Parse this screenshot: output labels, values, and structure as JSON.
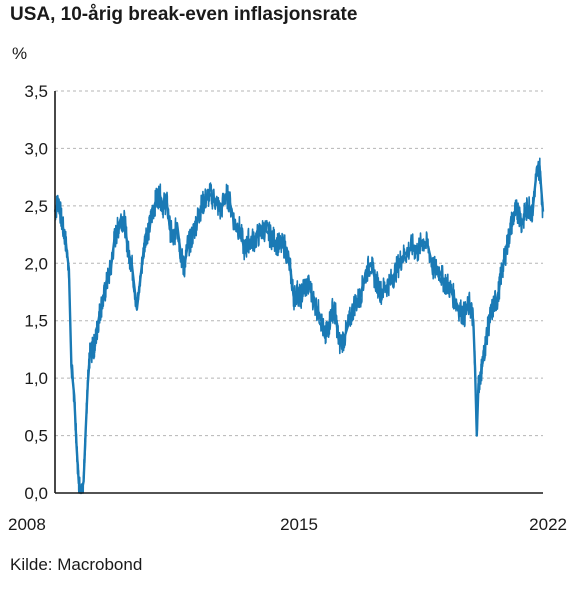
{
  "chart_data": {
    "type": "line",
    "title": "USA, 10-årig break-even inflasjonsrate",
    "unit_label": "%",
    "source": "Kilde: Macrobond",
    "xlabel": "",
    "ylabel": "",
    "xlim": [
      2008.0,
      2022.0
    ],
    "ylim": [
      0.0,
      3.5
    ],
    "y_ticks": [
      "0,0",
      "0,5",
      "1,0",
      "1,5",
      "2,0",
      "2,5",
      "3,0",
      "3,5"
    ],
    "y_tick_values": [
      0.0,
      0.5,
      1.0,
      1.5,
      2.0,
      2.5,
      3.0,
      3.5
    ],
    "x_ticks": [
      "2008",
      "2015",
      "2022"
    ],
    "x_tick_values": [
      2008.0,
      2015.0,
      2022.0
    ],
    "grid": "horizontal-dashed",
    "line_color": "#1a7ab5",
    "series": [
      {
        "x": [
          2008.0,
          2008.1,
          2008.2,
          2008.3,
          2008.4,
          2008.47,
          2008.55,
          2008.62,
          2008.68,
          2008.75,
          2008.82,
          2008.88,
          2008.94,
          2009.0,
          2009.08,
          2009.15,
          2009.22,
          2009.3,
          2009.4,
          2009.5,
          2009.6,
          2009.7,
          2009.8,
          2009.9,
          2010.0,
          2010.1,
          2010.2,
          2010.35,
          2010.5,
          2010.6,
          2010.7,
          2010.8,
          2010.9,
          2011.0,
          2011.1,
          2011.2,
          2011.3,
          2011.4,
          2011.5,
          2011.6,
          2011.7,
          2011.8,
          2011.9,
          2012.0,
          2012.1,
          2012.2,
          2012.3,
          2012.45,
          2012.6,
          2012.75,
          2012.9,
          2013.0,
          2013.15,
          2013.3,
          2013.45,
          2013.55,
          2013.7,
          2013.85,
          2014.0,
          2014.15,
          2014.3,
          2014.45,
          2014.6,
          2014.75,
          2014.85,
          2014.95,
          2015.05,
          2015.15,
          2015.3,
          2015.45,
          2015.6,
          2015.75,
          2015.85,
          2015.95,
          2016.05,
          2016.15,
          2016.3,
          2016.45,
          2016.6,
          2016.75,
          2016.9,
          2017.05,
          2017.2,
          2017.35,
          2017.5,
          2017.65,
          2017.8,
          2017.95,
          2018.1,
          2018.25,
          2018.4,
          2018.55,
          2018.7,
          2018.85,
          2019.0,
          2019.15,
          2019.3,
          2019.45,
          2019.6,
          2019.75,
          2019.9,
          2020.0,
          2020.05,
          2020.1,
          2020.15,
          2020.22,
          2020.3,
          2020.4,
          2020.5,
          2020.6,
          2020.7,
          2020.8,
          2020.9,
          2021.0,
          2021.1,
          2021.2,
          2021.3,
          2021.4,
          2021.5,
          2021.6,
          2021.7,
          2021.8,
          2021.9,
          2022.0
        ],
        "values": [
          2.45,
          2.55,
          2.35,
          2.2,
          1.95,
          1.1,
          0.85,
          0.4,
          0.1,
          0.0,
          0.1,
          0.55,
          0.95,
          1.2,
          1.25,
          1.3,
          1.45,
          1.6,
          1.7,
          1.85,
          1.95,
          2.2,
          2.3,
          2.4,
          2.35,
          2.1,
          2.0,
          1.6,
          2.0,
          2.25,
          2.3,
          2.45,
          2.55,
          2.6,
          2.5,
          2.55,
          2.3,
          2.2,
          2.35,
          2.1,
          1.95,
          2.15,
          2.2,
          2.3,
          2.4,
          2.5,
          2.55,
          2.6,
          2.55,
          2.45,
          2.6,
          2.55,
          2.35,
          2.3,
          2.1,
          2.2,
          2.2,
          2.25,
          2.3,
          2.25,
          2.2,
          2.15,
          2.15,
          1.95,
          1.7,
          1.75,
          1.7,
          1.8,
          1.8,
          1.65,
          1.55,
          1.35,
          1.45,
          1.6,
          1.55,
          1.3,
          1.35,
          1.5,
          1.65,
          1.7,
          1.9,
          2.0,
          1.85,
          1.75,
          1.8,
          1.85,
          1.95,
          2.05,
          2.1,
          2.15,
          2.1,
          2.2,
          2.15,
          1.95,
          1.95,
          1.85,
          1.8,
          1.7,
          1.6,
          1.55,
          1.65,
          1.5,
          1.1,
          0.5,
          0.95,
          1.05,
          1.2,
          1.4,
          1.55,
          1.65,
          1.7,
          1.9,
          2.05,
          2.2,
          2.35,
          2.45,
          2.45,
          2.35,
          2.45,
          2.5,
          2.45,
          2.75,
          2.85,
          2.45
        ]
      }
    ]
  }
}
